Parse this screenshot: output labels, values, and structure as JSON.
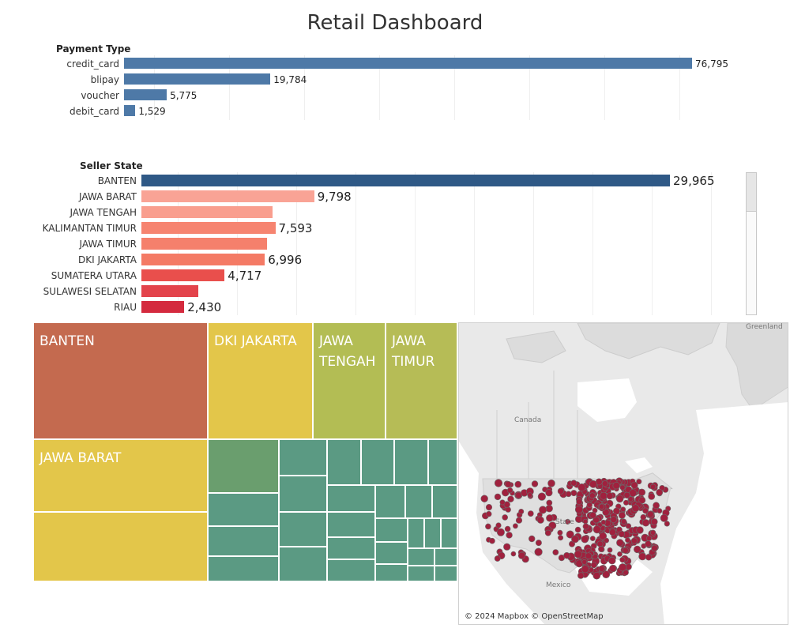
{
  "dashboard": {
    "title": "Retail Dashboard"
  },
  "payment_chart": {
    "field_label": "Payment Type",
    "bar_color": "#4e79a7",
    "items": [
      {
        "label": "credit_card",
        "value": 76795,
        "value_label": "76,795"
      },
      {
        "label": "blipay",
        "value": 19784,
        "value_label": "19,784"
      },
      {
        "label": "voucher",
        "value": 5775,
        "value_label": "5,775"
      },
      {
        "label": "debit_card",
        "value": 1529,
        "value_label": "1,529"
      }
    ]
  },
  "seller_chart": {
    "field_label": "Seller State",
    "items": [
      {
        "label": "BANTEN",
        "value": 29965,
        "value_label": "29,965",
        "color": "#2f5986"
      },
      {
        "label": "JAWA BARAT",
        "value": 9798,
        "value_label": "9,798",
        "color": "#f9a395"
      },
      {
        "label": "JAWA TENGAH",
        "value": 7450,
        "value_label": "",
        "color": "#f99e8e"
      },
      {
        "label": "KALIMANTAN TIMUR",
        "value": 7593,
        "value_label": "7,593",
        "color": "#f68470"
      },
      {
        "label": "JAWA TIMUR",
        "value": 7100,
        "value_label": "",
        "color": "#f5806c"
      },
      {
        "label": "DKI JAKARTA",
        "value": 6996,
        "value_label": "6,996",
        "color": "#f47a65"
      },
      {
        "label": "SUMATERA UTARA",
        "value": 4717,
        "value_label": "4,717",
        "color": "#e94f4c"
      },
      {
        "label": "SULAWESI SELATAN",
        "value": 3210,
        "value_label": "",
        "color": "#e3434b"
      },
      {
        "label": "RIAU",
        "value": 2430,
        "value_label": "2,430",
        "color": "#d42a3e"
      }
    ]
  },
  "treemap": {
    "tiles": [
      {
        "label": "BANTEN",
        "color": "#c46a4f"
      },
      {
        "label": "DKI JAKARTA",
        "color": "#e3c64a"
      },
      {
        "label": "JAWA TENGAH",
        "color": "#b3bd54"
      },
      {
        "label": "JAWA TIMUR",
        "color": "#b6bc56"
      },
      {
        "label": "JAWA BARAT",
        "color": "#e3c64a"
      }
    ]
  },
  "map": {
    "labels": {
      "greenland": "Greenland",
      "canada": "Canada",
      "mexico": "Mexico",
      "usa": "State"
    },
    "attribution": "© 2024 Mapbox © OpenStreetMap",
    "dot_color": "#a0213e"
  }
}
